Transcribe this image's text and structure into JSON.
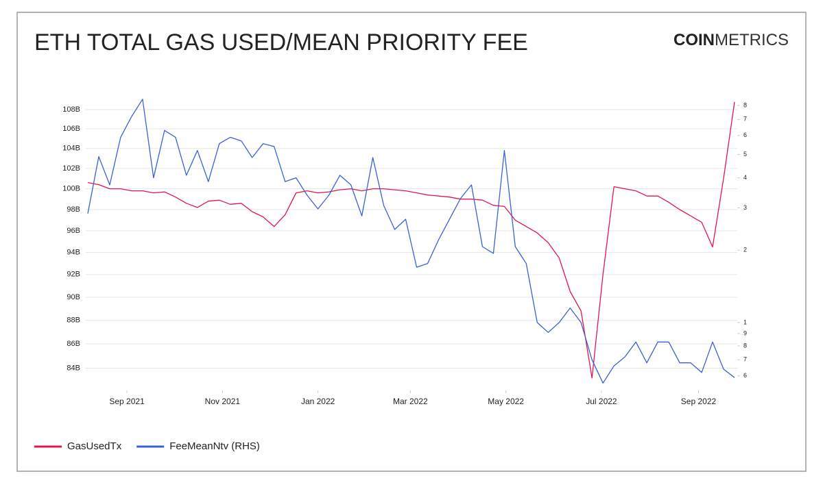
{
  "chart_data": {
    "type": "line",
    "title": "ETH TOTAL GAS USED/MEAN PRIORITY FEE",
    "logo": {
      "bold": "COIN",
      "light": "METRICS"
    },
    "x": [
      "2021-08-07",
      "2021-08-14",
      "2021-08-21",
      "2021-08-28",
      "2021-09-04",
      "2021-09-11",
      "2021-09-18",
      "2021-09-25",
      "2021-10-02",
      "2021-10-09",
      "2021-10-16",
      "2021-10-23",
      "2021-10-30",
      "2021-11-06",
      "2021-11-13",
      "2021-11-20",
      "2021-11-27",
      "2021-12-04",
      "2021-12-11",
      "2021-12-18",
      "2021-12-25",
      "2022-01-01",
      "2022-01-08",
      "2022-01-15",
      "2022-01-22",
      "2022-01-29",
      "2022-02-05",
      "2022-02-12",
      "2022-02-19",
      "2022-02-26",
      "2022-03-05",
      "2022-03-12",
      "2022-03-19",
      "2022-03-26",
      "2022-04-02",
      "2022-04-09",
      "2022-04-16",
      "2022-04-23",
      "2022-04-30",
      "2022-05-07",
      "2022-05-14",
      "2022-05-21",
      "2022-05-28",
      "2022-06-04",
      "2022-06-11",
      "2022-06-18",
      "2022-06-25",
      "2022-07-02",
      "2022-07-09",
      "2022-07-16",
      "2022-07-23",
      "2022-07-30",
      "2022-08-06",
      "2022-08-13",
      "2022-08-20",
      "2022-08-27",
      "2022-09-03",
      "2022-09-10",
      "2022-09-17",
      "2022-09-24"
    ],
    "xlim": [
      "2021-08-07",
      "2022-09-24"
    ],
    "xticks": [
      {
        "value": "2021-09-01",
        "label": "Sep 2021"
      },
      {
        "value": "2021-11-01",
        "label": "Nov 2021"
      },
      {
        "value": "2022-01-01",
        "label": "Jan 2022"
      },
      {
        "value": "2022-03-01",
        "label": "Mar 2022"
      },
      {
        "value": "2022-05-01",
        "label": "May 2022"
      },
      {
        "value": "2022-07-01",
        "label": "Jul 2022"
      },
      {
        "value": "2022-09-01",
        "label": "Sep 2022"
      }
    ],
    "ylog": true,
    "ylim": [
      82200000000,
      109450000000
    ],
    "yticks": [
      {
        "value": 84000000000,
        "label": "84B"
      },
      {
        "value": 86000000000,
        "label": "86B"
      },
      {
        "value": 88000000000,
        "label": "88B"
      },
      {
        "value": 90000000000,
        "label": "90B"
      },
      {
        "value": 92000000000,
        "label": "92B"
      },
      {
        "value": 94000000000,
        "label": "94B"
      },
      {
        "value": 96000000000,
        "label": "96B"
      },
      {
        "value": 98000000000,
        "label": "98B"
      },
      {
        "value": 100000000000,
        "label": "100B"
      },
      {
        "value": 102000000000,
        "label": "102B"
      },
      {
        "value": 104000000000,
        "label": "104B"
      },
      {
        "value": 106000000000,
        "label": "106B"
      },
      {
        "value": 108000000000,
        "label": "108B"
      }
    ],
    "y2log": true,
    "y2lim": [
      0.522,
      8.77
    ],
    "y2ticks": [
      {
        "value": 0.6,
        "label": "6"
      },
      {
        "value": 0.7,
        "label": "7"
      },
      {
        "value": 0.8,
        "label": "8"
      },
      {
        "value": 0.9,
        "label": "9"
      },
      1,
      2,
      3,
      4,
      5,
      6,
      7,
      8
    ],
    "grid": true,
    "legend": "bottom-left",
    "series": [
      {
        "name": "GasUsedTx",
        "color": "#e3154a",
        "values": [
          100600000000,
          100400000000,
          100000000000,
          100000000000,
          99800000000,
          99800000000,
          99600000000,
          99700000000,
          99200000000,
          98600000000,
          98200000000,
          98800000000,
          98900000000,
          98500000000,
          98600000000,
          97800000000,
          97300000000,
          96400000000,
          97500000000,
          99600000000,
          99800000000,
          99600000000,
          99700000000,
          99900000000,
          100000000000,
          99800000000,
          100000000000,
          100000000000,
          99900000000,
          99800000000,
          99600000000,
          99400000000,
          99300000000,
          99200000000,
          99000000000,
          99000000000,
          98900000000,
          98400000000,
          98300000000,
          97000000000,
          96400000000,
          95800000000,
          94900000000,
          93500000000,
          90500000000,
          88800000000,
          83200000000,
          92000000000,
          100200000000,
          100000000000,
          99800000000,
          99300000000,
          99300000000,
          98700000000,
          98000000000,
          97400000000,
          96800000000,
          94500000000,
          101000000000,
          108800000000
        ]
      },
      {
        "name": "FeeMeanNtv (RHS)",
        "color": "#3a5fd9",
        "axis": "y2",
        "values": [
          2.84,
          4.9,
          3.74,
          5.9,
          7.2,
          8.5,
          4.0,
          6.3,
          5.9,
          4.1,
          5.2,
          3.86,
          5.55,
          5.9,
          5.7,
          4.86,
          5.55,
          5.4,
          3.86,
          4.0,
          3.39,
          2.97,
          3.39,
          4.1,
          3.74,
          2.78,
          4.86,
          3.07,
          2.44,
          2.69,
          1.7,
          1.76,
          2.21,
          2.69,
          3.28,
          3.74,
          2.07,
          1.94,
          5.2,
          2.07,
          1.76,
          1.0,
          0.91,
          1.0,
          1.15,
          1.0,
          0.7,
          0.56,
          0.66,
          0.72,
          0.83,
          0.68,
          0.83,
          0.83,
          0.68,
          0.68,
          0.62,
          0.83,
          0.64,
          0.59
        ]
      }
    ]
  }
}
